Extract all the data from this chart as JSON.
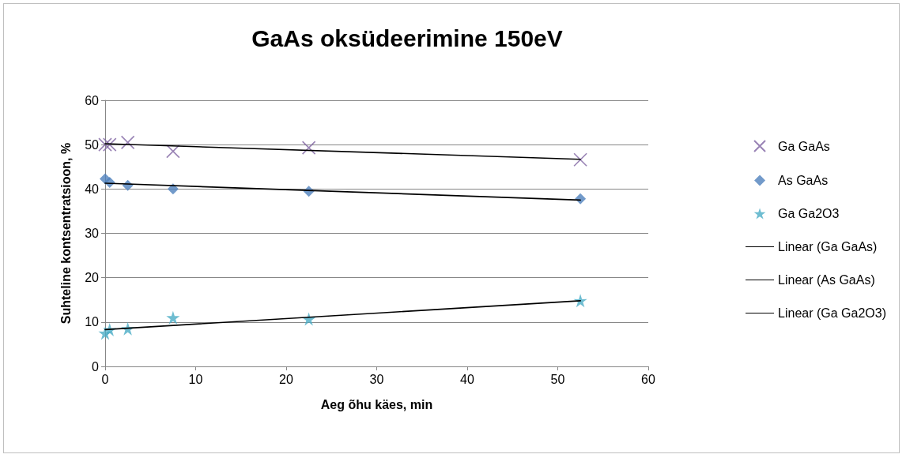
{
  "chart_data": {
    "type": "scatter",
    "title": "GaAs oksüdeerimine 150eV",
    "xlabel": "Aeg õhu käes, min",
    "ylabel": "Suhteline kontsentratsioon, %",
    "xlim": [
      0,
      60
    ],
    "xticks": [
      0,
      10,
      20,
      30,
      40,
      50,
      60
    ],
    "ylim": [
      0,
      60
    ],
    "yticks": [
      0,
      10,
      20,
      30,
      40,
      50,
      60
    ],
    "grid": "y",
    "legend": "right",
    "series": [
      {
        "name": "Ga GaAs",
        "color": "#8064a2",
        "marker": "cross",
        "x": [
          0,
          0.5,
          2.5,
          7.5,
          22.5,
          52.5
        ],
        "values": [
          50,
          50,
          50.5,
          48.5,
          49.3,
          46.6
        ]
      },
      {
        "name": "As GaAs",
        "color": "#4f81bd",
        "marker": "diamond",
        "x": [
          0,
          0.5,
          2.5,
          7.5,
          22.5,
          52.5
        ],
        "values": [
          42.3,
          41.5,
          40.8,
          40,
          39.5,
          37.8
        ]
      },
      {
        "name": "Ga Ga2O3",
        "color": "#4bacc6",
        "marker": "star",
        "x": [
          0,
          0.5,
          2.5,
          7.5,
          22.5,
          52.5
        ],
        "values": [
          7.5,
          8.3,
          8.5,
          11,
          10.7,
          14.8
        ]
      },
      {
        "name": "Linear (Ga GaAs)",
        "type": "line",
        "color": "#000000",
        "marker": "none",
        "x": [
          0,
          52.5
        ],
        "values": [
          50.2,
          46.7
        ]
      },
      {
        "name": "Linear (As GaAs)",
        "type": "line",
        "color": "#000000",
        "marker": "none",
        "x": [
          0,
          52.5
        ],
        "values": [
          41.3,
          37.5
        ]
      },
      {
        "name": "Linear (Ga Ga2O3)",
        "type": "line",
        "color": "#000000",
        "marker": "none",
        "x": [
          0,
          52.5
        ],
        "values": [
          8.3,
          14.8
        ]
      }
    ]
  }
}
